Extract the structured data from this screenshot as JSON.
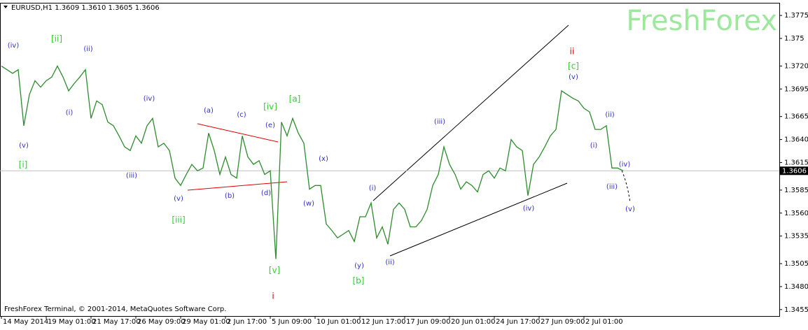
{
  "chart_data": {
    "type": "line",
    "title": "EURUSD,H1  1.3609 1.3610 1.3605 1.3606",
    "watermark": "FreshForex",
    "footer": "FreshForex Terminal, © 2001-2014, MetaQuotes Software Corp.",
    "color": "#2e8b2e",
    "current_price": 1.3606,
    "current_price_color": "#c0c0c0",
    "ylim": [
      1.3448,
      1.3788
    ],
    "yticks": [
      1.3775,
      1.375,
      {
        "value": 1.372,
        "label": "1.3720"
      },
      1.3695,
      1.3665,
      {
        "value": 1.364,
        "label": "1.3640"
      },
      1.3615,
      1.3585,
      {
        "value": 1.356,
        "label": "1.3560"
      },
      1.3535,
      1.3505,
      {
        "value": 1.348,
        "label": "1.3480"
      },
      1.3455
    ],
    "grid": false,
    "categories": [
      "14 May 2014",
      null,
      null,
      null,
      null,
      null,
      null,
      null,
      "19 May 01:00",
      null,
      null,
      null,
      null,
      null,
      null,
      null,
      "21 May 17:00",
      null,
      null,
      null,
      null,
      null,
      null,
      null,
      "26 May 09:00",
      null,
      null,
      null,
      null,
      null,
      null,
      null,
      "29 May 01:00",
      null,
      null,
      null,
      null,
      null,
      null,
      null,
      "2 Jun 17:00",
      null,
      null,
      null,
      null,
      null,
      null,
      null,
      "5 Jun 09:00",
      null,
      null,
      null,
      null,
      null,
      null,
      null,
      "10 Jun 01:00",
      null,
      null,
      null,
      null,
      null,
      null,
      null,
      "12 Jun 17:00",
      null,
      null,
      null,
      null,
      null,
      null,
      null,
      "17 Jun 09:00",
      null,
      null,
      null,
      null,
      null,
      null,
      null,
      "20 Jun 01:00",
      null,
      null,
      null,
      null,
      null,
      null,
      null,
      "24 Jun 17:00",
      null,
      null,
      null,
      null,
      null,
      null,
      null,
      "27 Jun 09:00",
      null,
      null,
      null,
      null,
      null,
      null,
      null,
      "2 Jul 01:00",
      null,
      null,
      null,
      null,
      null,
      null,
      null
    ],
    "values": [
      1.372,
      1.3716,
      1.3712,
      1.3716,
      1.3655,
      1.3689,
      1.3704,
      1.3697,
      1.3704,
      1.3708,
      1.372,
      1.3708,
      1.3693,
      1.3701,
      1.3708,
      1.3716,
      1.3663,
      1.3682,
      1.3678,
      1.3659,
      1.3655,
      1.3644,
      1.3632,
      1.3628,
      1.3644,
      1.3636,
      1.3655,
      1.3663,
      1.3632,
      1.3636,
      1.3628,
      1.3598,
      1.359,
      1.3602,
      1.3613,
      1.3606,
      1.3609,
      1.3647,
      1.3628,
      1.3602,
      1.3621,
      1.3602,
      1.3598,
      1.3644,
      1.3621,
      1.3613,
      1.3617,
      1.3602,
      1.3606,
      1.351,
      1.3659,
      1.3644,
      1.3663,
      1.3647,
      1.3636,
      1.3586,
      1.359,
      1.359,
      1.3548,
      1.3541,
      1.3533,
      1.3537,
      1.3541,
      1.3529,
      1.3556,
      1.3556,
      1.3571,
      1.3533,
      1.3545,
      1.3526,
      1.3564,
      1.3571,
      1.3564,
      1.3545,
      1.3545,
      1.3552,
      1.3564,
      1.359,
      1.3602,
      1.3632,
      1.3613,
      1.3602,
      1.3586,
      1.3594,
      1.359,
      1.3583,
      1.3602,
      1.3606,
      1.3598,
      1.3609,
      1.3606,
      1.364,
      1.3632,
      1.3628,
      1.3579,
      1.3613,
      1.3621,
      1.3632,
      1.3644,
      1.3651,
      1.3693,
      1.3689,
      1.3685,
      1.3682,
      1.3674,
      1.367,
      1.3651,
      1.3651,
      1.3655,
      1.3609,
      1.3609,
      1.3606
    ],
    "annotations": [
      {
        "text": "[ii]",
        "color": "#33cc33"
      },
      {
        "text": "[i]",
        "color": "#33cc33"
      },
      {
        "text": "[iii]",
        "color": "#33cc33"
      },
      {
        "text": "[iv]",
        "color": "#33cc33"
      },
      {
        "text": "[a]",
        "color": "#33cc33"
      },
      {
        "text": "[v]",
        "color": "#33cc33"
      },
      {
        "text": "[b]",
        "color": "#33cc33"
      },
      {
        "text": "[c]",
        "color": "#33cc33"
      },
      {
        "text": "(iv)",
        "color": "#3030c8"
      },
      {
        "text": "(ii)",
        "color": "#3030c8"
      },
      {
        "text": "(i)",
        "color": "#3030c8"
      },
      {
        "text": "(v)",
        "color": "#3030c8"
      },
      {
        "text": "(iv)",
        "color": "#3030c8"
      },
      {
        "text": "(iii)",
        "color": "#3030c8"
      },
      {
        "text": "(v)",
        "color": "#3030c8"
      },
      {
        "text": "(a)",
        "color": "#3030c8"
      },
      {
        "text": "(c)",
        "color": "#3030c8"
      },
      {
        "text": "(e)",
        "color": "#3030c8"
      },
      {
        "text": "(b)",
        "color": "#3030c8"
      },
      {
        "text": "(d)",
        "color": "#3030c8"
      },
      {
        "text": "(x)",
        "color": "#3030c8"
      },
      {
        "text": "(w)",
        "color": "#3030c8"
      },
      {
        "text": "(y)",
        "color": "#3030c8"
      },
      {
        "text": "(i)",
        "color": "#3030c8"
      },
      {
        "text": "(ii)",
        "color": "#3030c8"
      },
      {
        "text": "(iii)",
        "color": "#3030c8"
      },
      {
        "text": "(iv)",
        "color": "#3030c8"
      },
      {
        "text": "(v)",
        "color": "#3030c8"
      },
      {
        "text": "(ii)",
        "color": "#3030c8"
      },
      {
        "text": "(i)",
        "color": "#3030c8"
      },
      {
        "text": "(iv)",
        "color": "#3030c8"
      },
      {
        "text": "(iii)",
        "color": "#3030c8"
      },
      {
        "text": "(v)",
        "color": "#3030c8"
      },
      {
        "text": "ii",
        "color": "#cc0000"
      },
      {
        "text": "i",
        "color": "#cc0000"
      }
    ]
  }
}
